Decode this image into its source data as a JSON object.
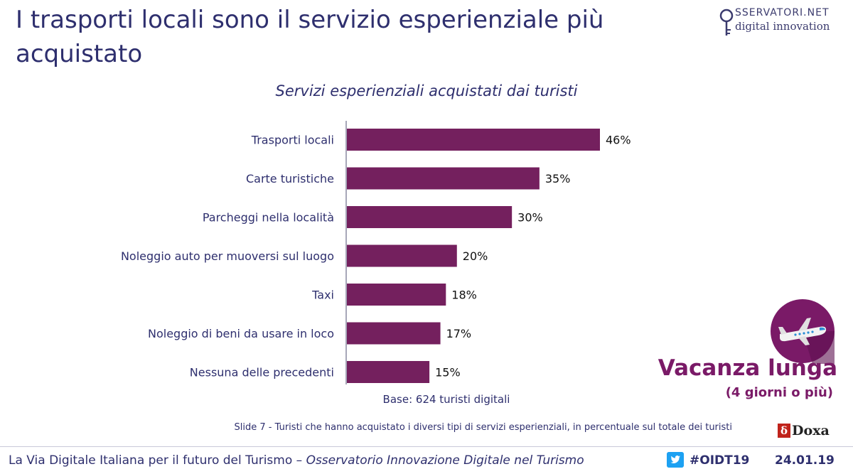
{
  "slide": {
    "title": "I trasporti locali sono il servizio esperienziale più acquistato",
    "logo_line1": "SSERVATORI.NET",
    "logo_line2": "digital innovation",
    "base_note": "Base: 624 turisti digitali",
    "badge_title": "Vacanza lunga",
    "badge_subtitle": "(4 giorni o più)",
    "footnote": "Slide 7 - Turisti che hanno acquistato i diversi tipi di servizi esperienziali, in percentuale sul totale dei turisti",
    "doxa": "Doxa",
    "footer_text": "La Via Digitale Italiana per il futuro del Turismo – ",
    "footer_italic": "Osservatorio Innovazione Digitale nel Turismo",
    "hashtag": "#OIDT19",
    "date": "24.01.19",
    "colors": {
      "bar": "#74205e",
      "badge": "#7a1a67",
      "text": "#2e2f6e",
      "twitter": "#1da1f2"
    },
    "icons": [
      "airplane-icon",
      "twitter-icon",
      "location-pin-icon"
    ]
  },
  "chart_data": {
    "type": "bar",
    "orientation": "horizontal",
    "title": "Servizi esperienziali acquistati dai turisti",
    "categories": [
      "Trasporti locali",
      "Carte turistiche",
      "Parcheggi nella località",
      "Noleggio auto per muoversi sul luogo",
      "Taxi",
      "Noleggio di beni da usare in loco",
      "Nessuna delle precedenti"
    ],
    "values": [
      46,
      35,
      30,
      20,
      18,
      17,
      15
    ],
    "value_labels": [
      "46%",
      "35%",
      "30%",
      "20%",
      "18%",
      "17%",
      "15%"
    ],
    "unit": "%",
    "xlim": [
      0,
      46
    ],
    "grid": false,
    "legend": "none"
  }
}
